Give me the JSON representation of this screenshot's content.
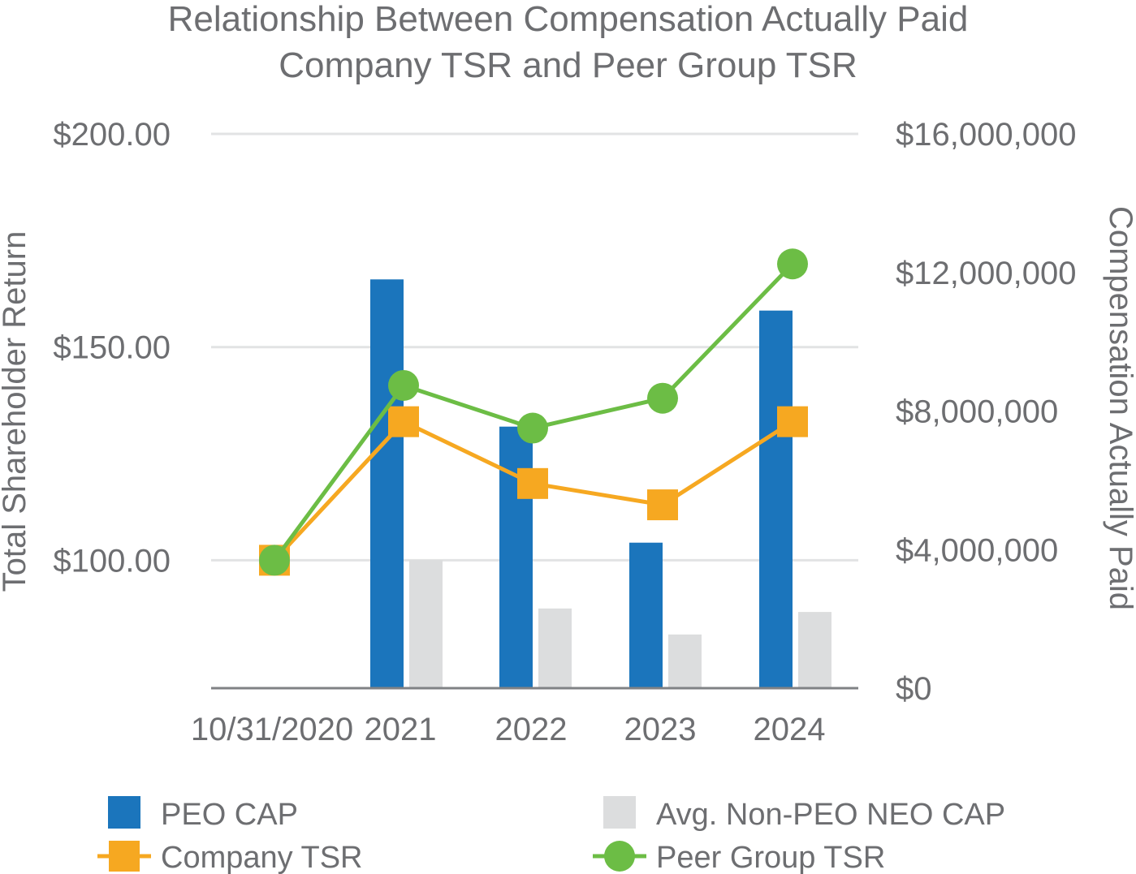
{
  "chart_data": {
    "type": "bar",
    "title": [
      "Relationship Between Compensation Actually Paid",
      "Company TSR and Peer Group TSR"
    ],
    "categories": [
      "10/31/2020",
      "2021",
      "2022",
      "2023",
      "2024"
    ],
    "y_left": {
      "label": "Total Shareholder Return",
      "ylim": [
        70,
        200
      ],
      "ticks": [
        100,
        150,
        200
      ],
      "tick_labels": [
        "$100.00",
        "$150.00",
        "$200.00"
      ]
    },
    "y_right": {
      "label": "Compensation Actually Paid",
      "ylim": [
        0,
        16000000
      ],
      "ticks": [
        0,
        4000000,
        8000000,
        12000000,
        16000000
      ],
      "tick_labels": [
        "$0",
        "$4,000,000",
        "$8,000,000",
        "$12,000,000",
        "$16,000,000"
      ]
    },
    "series": [
      {
        "name": "PEO CAP",
        "type": "bar",
        "axis": "right",
        "color": "#1b75bc",
        "values": [
          null,
          11800000,
          7550000,
          4200000,
          10900000
        ]
      },
      {
        "name": "Avg. Non-PEO NEO CAP",
        "type": "bar",
        "axis": "right",
        "color": "#dcddde",
        "values": [
          null,
          3700000,
          2300000,
          1550000,
          2200000
        ]
      },
      {
        "name": "Company TSR",
        "type": "line",
        "axis": "left",
        "marker": "square",
        "color": "#f6a821",
        "values": [
          100,
          132.5,
          118,
          113,
          132.5
        ]
      },
      {
        "name": "Peer Group TSR",
        "type": "line",
        "axis": "left",
        "marker": "circle",
        "color": "#6cbd45",
        "values": [
          100,
          141,
          131,
          138,
          169.5
        ]
      }
    ],
    "legend": [
      "PEO CAP",
      "Avg. Non-PEO NEO CAP",
      "Company TSR",
      "Peer Group TSR"
    ],
    "legend_position": "bottom",
    "grid": true
  }
}
